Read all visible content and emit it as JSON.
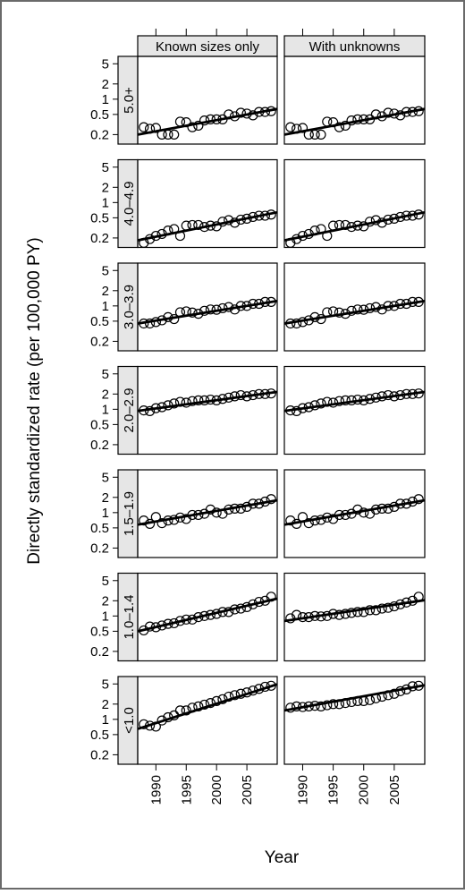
{
  "chart_data": {
    "type": "scatter",
    "title": "",
    "xlabel": "Year",
    "ylabel": "Directly standardized rate (per 100,000 PY)",
    "x_axis": {
      "range": [
        1987,
        2010
      ],
      "ticks": [
        1990,
        1995,
        2000,
        2005
      ],
      "tick_labels": [
        "1990",
        "1995",
        "2000",
        "2005"
      ]
    },
    "y_axis": {
      "scale": "log",
      "range": [
        0.13,
        7
      ],
      "ticks": [
        0.2,
        0.5,
        1,
        2,
        5
      ],
      "tick_labels": [
        "0.2",
        "0.5",
        "1",
        "2",
        "5"
      ]
    },
    "columns": [
      "Known sizes only",
      "With unknowns"
    ],
    "years": [
      1988,
      1989,
      1990,
      1991,
      1992,
      1993,
      1994,
      1995,
      1996,
      1997,
      1998,
      1999,
      2000,
      2001,
      2002,
      2003,
      2004,
      2005,
      2006,
      2007,
      2008,
      2009
    ],
    "panels": [
      {
        "row_label": "5.0+",
        "known": {
          "values": [
            0.28,
            0.26,
            0.27,
            0.2,
            0.2,
            0.2,
            0.36,
            0.35,
            0.28,
            0.3,
            0.38,
            0.4,
            0.4,
            0.4,
            0.5,
            0.46,
            0.54,
            0.52,
            0.48,
            0.56,
            0.56,
            0.58
          ],
          "fit": [
            0.2,
            0.64
          ]
        },
        "unknown": {
          "values": [
            0.28,
            0.26,
            0.27,
            0.2,
            0.2,
            0.2,
            0.36,
            0.35,
            0.28,
            0.3,
            0.38,
            0.4,
            0.4,
            0.4,
            0.5,
            0.46,
            0.54,
            0.52,
            0.48,
            0.56,
            0.56,
            0.58
          ],
          "fit": [
            0.2,
            0.64
          ]
        }
      },
      {
        "row_label": "4.0–4.9",
        "known": {
          "values": [
            0.16,
            0.19,
            0.22,
            0.24,
            0.28,
            0.3,
            0.22,
            0.35,
            0.36,
            0.36,
            0.33,
            0.35,
            0.34,
            0.42,
            0.45,
            0.4,
            0.46,
            0.48,
            0.52,
            0.55,
            0.55,
            0.58
          ],
          "fit": [
            0.18,
            0.64
          ]
        },
        "unknown": {
          "values": [
            0.16,
            0.19,
            0.22,
            0.24,
            0.28,
            0.3,
            0.22,
            0.35,
            0.36,
            0.36,
            0.33,
            0.35,
            0.34,
            0.42,
            0.45,
            0.4,
            0.46,
            0.48,
            0.52,
            0.55,
            0.55,
            0.58
          ],
          "fit": [
            0.18,
            0.64
          ]
        }
      },
      {
        "row_label": "3.0–3.9",
        "known": {
          "values": [
            0.45,
            0.45,
            0.48,
            0.52,
            0.6,
            0.55,
            0.75,
            0.78,
            0.74,
            0.7,
            0.8,
            0.85,
            0.84,
            0.9,
            0.95,
            0.85,
            1.0,
            1.0,
            1.1,
            1.1,
            1.2,
            1.2
          ],
          "fit": [
            0.45,
            1.25
          ]
        },
        "unknown": {
          "values": [
            0.45,
            0.45,
            0.48,
            0.52,
            0.6,
            0.55,
            0.75,
            0.78,
            0.74,
            0.7,
            0.8,
            0.85,
            0.84,
            0.9,
            0.95,
            0.85,
            1.0,
            1.0,
            1.1,
            1.1,
            1.2,
            1.2
          ],
          "fit": [
            0.45,
            1.25
          ]
        }
      },
      {
        "row_label": "2.0–2.9",
        "known": {
          "values": [
            0.95,
            0.92,
            1.05,
            1.1,
            1.2,
            1.3,
            1.4,
            1.35,
            1.45,
            1.5,
            1.5,
            1.55,
            1.5,
            1.6,
            1.7,
            1.8,
            1.9,
            1.8,
            1.9,
            2.0,
            2.0,
            2.05
          ],
          "fit": [
            0.93,
            2.2
          ]
        },
        "unknown": {
          "values": [
            0.95,
            0.92,
            1.05,
            1.1,
            1.2,
            1.3,
            1.4,
            1.35,
            1.45,
            1.5,
            1.5,
            1.55,
            1.5,
            1.6,
            1.7,
            1.8,
            1.9,
            1.8,
            1.9,
            2.0,
            2.0,
            2.05
          ],
          "fit": [
            0.93,
            2.2
          ]
        }
      },
      {
        "row_label": "1.5–1.9",
        "known": {
          "values": [
            0.7,
            0.6,
            0.82,
            0.62,
            0.7,
            0.72,
            0.8,
            0.75,
            0.9,
            0.9,
            0.95,
            1.15,
            1.0,
            0.95,
            1.15,
            1.2,
            1.2,
            1.3,
            1.5,
            1.5,
            1.65,
            1.85
          ],
          "fit": [
            0.58,
            1.75
          ]
        },
        "unknown": {
          "values": [
            0.7,
            0.6,
            0.82,
            0.62,
            0.7,
            0.72,
            0.8,
            0.75,
            0.9,
            0.9,
            0.95,
            1.15,
            1.0,
            0.95,
            1.15,
            1.2,
            1.2,
            1.3,
            1.5,
            1.5,
            1.65,
            1.85
          ],
          "fit": [
            0.58,
            1.75
          ]
        }
      },
      {
        "row_label": "1.0–1.4",
        "known": {
          "values": [
            0.52,
            0.62,
            0.6,
            0.65,
            0.7,
            0.72,
            0.8,
            0.85,
            0.85,
            0.95,
            1.0,
            1.05,
            1.1,
            1.2,
            1.2,
            1.35,
            1.4,
            1.5,
            1.7,
            1.9,
            2.0,
            2.4
          ],
          "fit": [
            0.5,
            2.2
          ]
        },
        "unknown": {
          "values": [
            0.9,
            1.05,
            0.95,
            0.95,
            1.0,
            0.98,
            1.0,
            1.1,
            1.05,
            1.1,
            1.15,
            1.2,
            1.2,
            1.3,
            1.3,
            1.4,
            1.45,
            1.55,
            1.7,
            1.85,
            2.0,
            2.4
          ],
          "fit": [
            0.8,
            2.05
          ]
        }
      },
      {
        "row_label": "<1.0",
        "known": {
          "values": [
            0.8,
            0.75,
            0.72,
            0.95,
            1.1,
            1.2,
            1.5,
            1.5,
            1.7,
            1.8,
            1.95,
            2.1,
            2.3,
            2.5,
            2.8,
            3.0,
            3.2,
            3.4,
            3.7,
            4.0,
            4.4,
            4.6
          ],
          "fit": [
            0.65,
            4.9
          ]
        },
        "unknown": {
          "values": [
            1.7,
            1.8,
            1.75,
            1.8,
            1.85,
            1.8,
            1.9,
            2.0,
            2.0,
            2.1,
            2.2,
            2.3,
            2.3,
            2.4,
            2.6,
            2.8,
            3.0,
            3.2,
            3.6,
            3.9,
            4.5,
            4.6
          ],
          "fit": [
            1.5,
            4.7
          ]
        }
      }
    ]
  }
}
